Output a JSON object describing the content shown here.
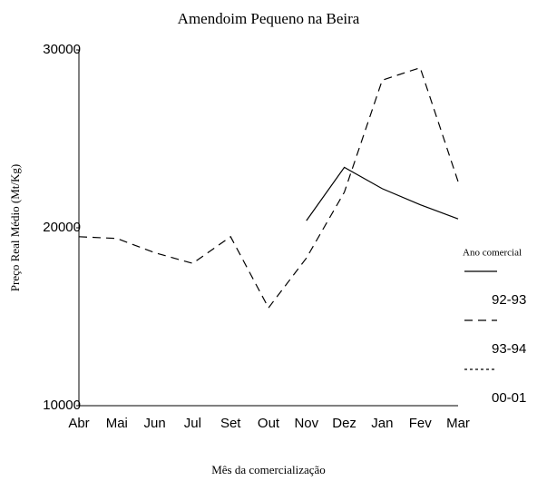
{
  "chart_data": {
    "type": "line",
    "title": "Amendoim Pequeno na Beira",
    "x_label": "Mês da comercialização",
    "y_label": "Preço Real Médio (Mt/Kg)",
    "categories": [
      "Abr",
      "Mai",
      "Jun",
      "Jul",
      "Set",
      "Out",
      "Nov",
      "Dez",
      "Jan",
      "Fev",
      "Mar"
    ],
    "series": [
      {
        "name": "92-93",
        "color": "#000000",
        "dash": "solid",
        "values": [
          null,
          null,
          null,
          null,
          null,
          null,
          20400,
          23400,
          22200,
          21300,
          20500
        ]
      },
      {
        "name": "93-94",
        "color": "#000000",
        "dash": "dashed",
        "values": [
          19500,
          19400,
          18600,
          18000,
          19500,
          15500,
          18300,
          22000,
          28300,
          29000,
          22600
        ]
      },
      {
        "name": "00-01",
        "color": "#000000",
        "dash": "dotted",
        "values": [
          null,
          null,
          null,
          null,
          null,
          null,
          null,
          null,
          null,
          null,
          null
        ]
      }
    ],
    "legend_title": "Ano comercial",
    "legend_position": "right",
    "ylim": [
      10000,
      30000
    ],
    "yticks": [
      10000,
      20000,
      30000
    ],
    "grid": false
  }
}
